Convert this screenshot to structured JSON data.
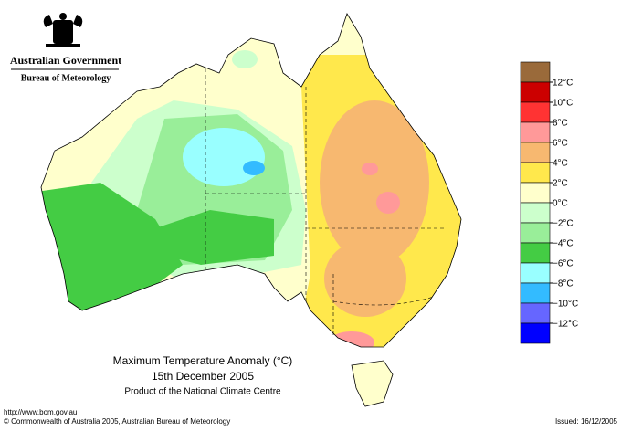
{
  "header": {
    "organisation": "Australian Government",
    "agency": "Bureau of Meteorology"
  },
  "title": {
    "line1": "Maximum Temperature Anomaly (°C)",
    "line2": "15th December 2005",
    "line3": "Product of the National Climate Centre"
  },
  "legend": {
    "colors": [
      "#9a6a3a",
      "#cc0000",
      "#ff3333",
      "#ff9999",
      "#f7b870",
      "#ffe84c",
      "#ffffcc",
      "#ccffcc",
      "#99ee99",
      "#44cc44",
      "#99ffff",
      "#33bbff",
      "#6666ff",
      "#0000ff"
    ],
    "ticks": [
      {
        "value": 12,
        "label": "12°C"
      },
      {
        "value": 10,
        "label": "10°C"
      },
      {
        "value": 8,
        "label": "8°C"
      },
      {
        "value": 6,
        "label": "6°C"
      },
      {
        "value": 4,
        "label": "4°C"
      },
      {
        "value": 2,
        "label": "2°C"
      },
      {
        "value": 0,
        "label": "0°C"
      },
      {
        "value": -2,
        "label": "−2°C"
      },
      {
        "value": -4,
        "label": "−4°C"
      },
      {
        "value": -6,
        "label": "−6°C"
      },
      {
        "value": -8,
        "label": "−8°C"
      },
      {
        "value": -10,
        "label": "−10°C"
      },
      {
        "value": -12,
        "label": "−12°C"
      }
    ]
  },
  "footer": {
    "url": "http://www.bom.gov.au",
    "copyright": "© Commonwealth of Australia 2005, Australian Bureau of Meteorology",
    "issued": "Issued: 16/12/2005"
  }
}
